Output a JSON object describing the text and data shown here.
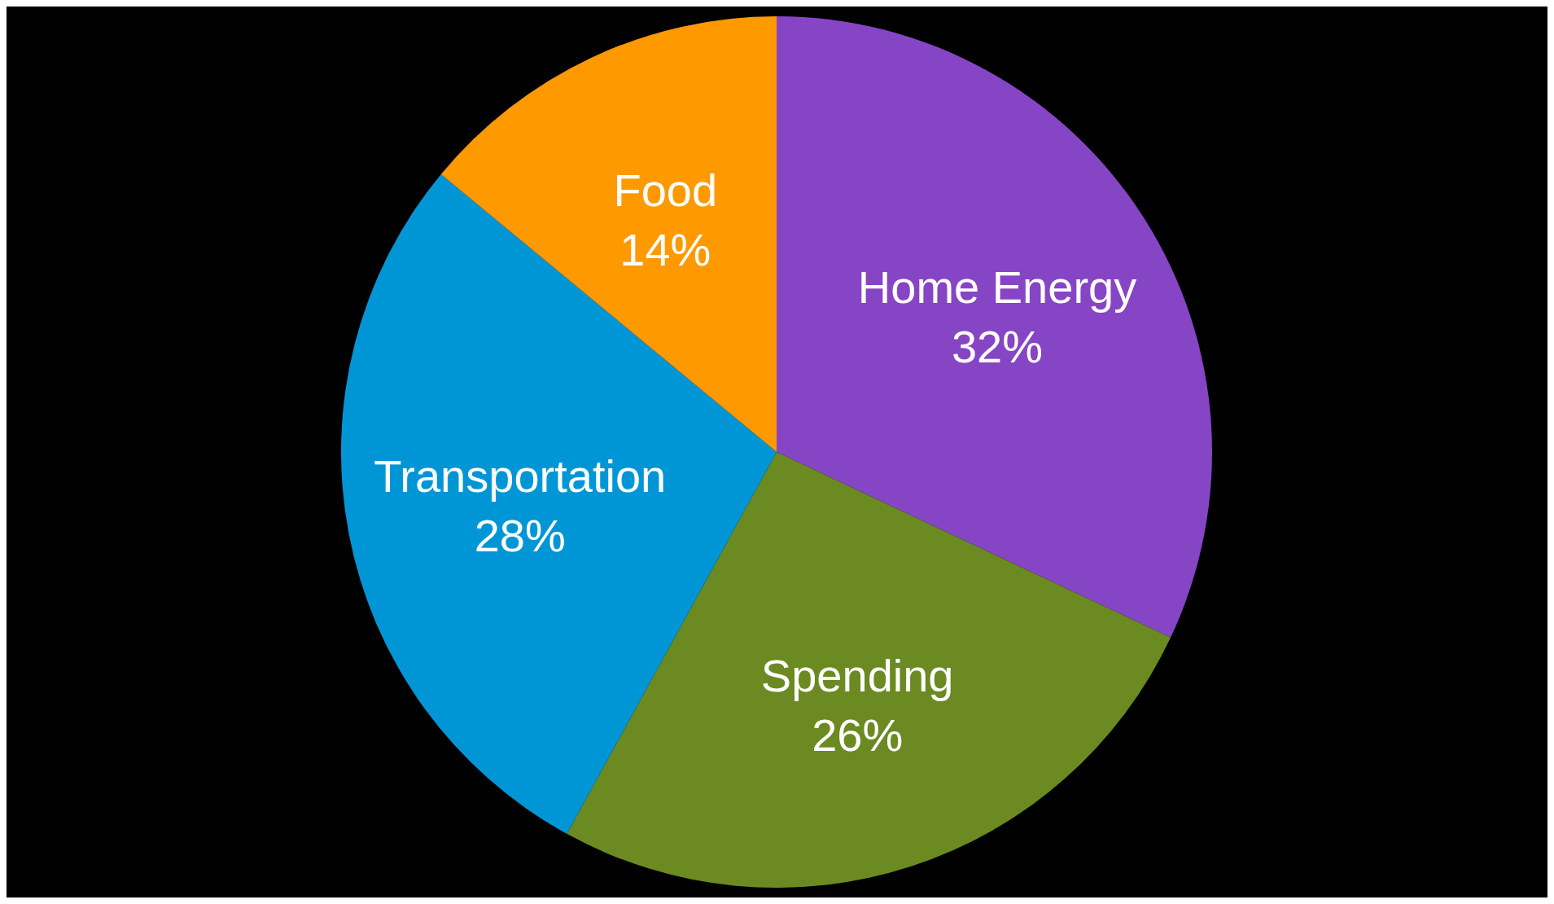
{
  "chart_data": {
    "type": "pie",
    "categories": [
      "Home Energy",
      "Spending",
      "Transportation",
      "Food"
    ],
    "values": [
      32,
      26,
      28,
      14
    ],
    "value_labels": [
      "32%",
      "26%",
      "28%",
      "14%"
    ],
    "colors": [
      "#8645c5",
      "#6b8a22",
      "#0096d6",
      "#ff9900"
    ]
  }
}
